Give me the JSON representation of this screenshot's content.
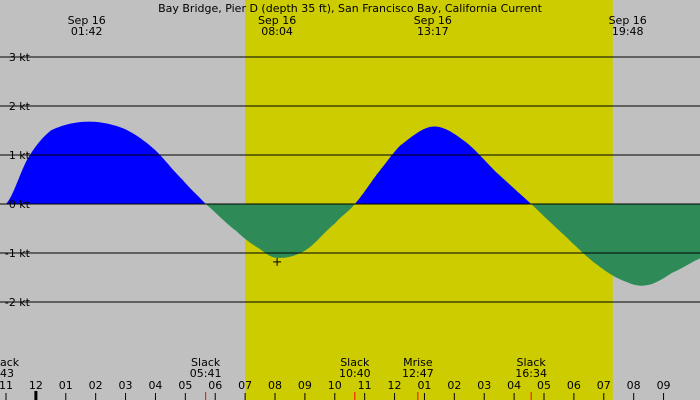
{
  "colors": {
    "night_bg": "#c0c0c0",
    "day_bg": "#cccc00",
    "flood": "#0000ff",
    "ebb": "#2e8b57",
    "grid": "#000000",
    "event_tick": "#ff0000"
  },
  "chart_data": {
    "type": "area",
    "title": "Bay Bridge, Pier D (depth 35 ft), San Francisco Bay, California Current",
    "ylabel": "",
    "ylim": [
      -3,
      3.3
    ],
    "xlim_hours": [
      -1.0,
      33.3
    ],
    "grid": true,
    "y_ticks": [
      {
        "value": 3,
        "label": "3 kt"
      },
      {
        "value": 2,
        "label": "2 kt"
      },
      {
        "value": 1,
        "label": "1 kt"
      },
      {
        "value": 0,
        "label": "0 kt"
      },
      {
        "value": -1,
        "label": "-1 kt"
      },
      {
        "value": -2,
        "label": "-2 kt"
      }
    ],
    "x_ticks": [
      {
        "value": -1,
        "label": "11"
      },
      {
        "value": 0,
        "label": "12"
      },
      {
        "value": 1,
        "label": "01"
      },
      {
        "value": 2,
        "label": "02"
      },
      {
        "value": 3,
        "label": "03"
      },
      {
        "value": 4,
        "label": "04"
      },
      {
        "value": 5,
        "label": "05"
      },
      {
        "value": 6,
        "label": "06"
      },
      {
        "value": 7,
        "label": "07"
      },
      {
        "value": 8,
        "label": "08"
      },
      {
        "value": 9,
        "label": "09"
      },
      {
        "value": 10,
        "label": "10"
      },
      {
        "value": 11,
        "label": "11"
      },
      {
        "value": 12,
        "label": "12"
      },
      {
        "value": 13,
        "label": "01"
      },
      {
        "value": 14,
        "label": "02"
      },
      {
        "value": 15,
        "label": "03"
      },
      {
        "value": 16,
        "label": "04"
      },
      {
        "value": 17,
        "label": "05"
      },
      {
        "value": 18,
        "label": "06"
      },
      {
        "value": 19,
        "label": "07"
      },
      {
        "value": 20,
        "label": "08"
      },
      {
        "value": 21,
        "label": "09"
      }
    ],
    "daylight_hours": [
      7.0,
      19.3
    ],
    "curve_points": [
      [
        -1.0,
        0.0
      ],
      [
        -0.25,
        0.95
      ],
      [
        0.5,
        1.5
      ],
      [
        1.7,
        1.68
      ],
      [
        2.9,
        1.55
      ],
      [
        3.9,
        1.15
      ],
      [
        4.9,
        0.5
      ],
      [
        5.68,
        0.0
      ],
      [
        6.7,
        -0.55
      ],
      [
        7.5,
        -0.92
      ],
      [
        8.07,
        -1.1
      ],
      [
        9.0,
        -0.95
      ],
      [
        10.0,
        -0.4
      ],
      [
        10.67,
        0.0
      ],
      [
        11.4,
        0.6
      ],
      [
        12.2,
        1.2
      ],
      [
        13.28,
        1.58
      ],
      [
        14.3,
        1.3
      ],
      [
        15.4,
        0.65
      ],
      [
        16.57,
        0.0
      ],
      [
        17.7,
        -0.65
      ],
      [
        18.8,
        -1.25
      ],
      [
        19.8,
        -1.6
      ],
      [
        20.5,
        -1.65
      ],
      [
        21.3,
        -1.4
      ],
      [
        22.5,
        -1.05
      ]
    ],
    "max_min_events": [
      {
        "hour": 1.7,
        "date": "Sep 16",
        "time": "01:42"
      },
      {
        "hour": 8.07,
        "date": "Sep 16",
        "time": "08:04"
      },
      {
        "hour": 13.28,
        "date": "Sep 16",
        "time": "13:17"
      },
      {
        "hour": 19.8,
        "date": "Sep 16",
        "time": "19:48"
      }
    ],
    "bottom_events": [
      {
        "hour": -1.28,
        "name": "ack",
        "time": "43",
        "align": "start"
      },
      {
        "hour": 5.68,
        "name": "Slack",
        "time": "05:41",
        "align": "middle"
      },
      {
        "hour": 10.67,
        "name": "Slack",
        "time": "10:40",
        "align": "middle"
      },
      {
        "hour": 12.78,
        "name": "Mrise",
        "time": "12:47",
        "align": "middle"
      },
      {
        "hour": 16.57,
        "name": "Slack",
        "time": "16:34",
        "align": "middle"
      }
    ],
    "marker": {
      "hour": 8.07,
      "value": -1.1
    }
  }
}
